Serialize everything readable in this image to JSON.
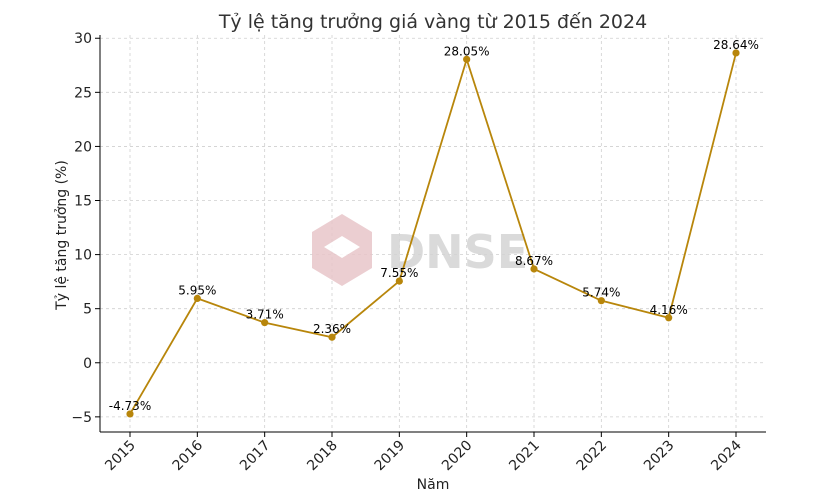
{
  "chart_data": {
    "type": "line",
    "title": "Tỷ lệ tăng trưởng giá vàng từ 2015 đến 2024",
    "xlabel": "Năm",
    "ylabel": "Tỷ lệ tăng trưởng (%)",
    "x": [
      "2015",
      "2016",
      "2017",
      "2018",
      "2019",
      "2020",
      "2021",
      "2022",
      "2023",
      "2024"
    ],
    "series": [
      {
        "values": [
          -4.73,
          5.95,
          3.71,
          2.36,
          7.55,
          28.05,
          8.67,
          5.74,
          4.16,
          28.64
        ],
        "labels": [
          "-4.73%",
          "5.95%",
          "3.71%",
          "2.36%",
          "7.55%",
          "28.05%",
          "8.67%",
          "5.74%",
          "4.16%",
          "28.64%"
        ],
        "color": "#b8860b"
      }
    ],
    "ylim": [
      -6.4,
      30.3
    ],
    "yticks": [
      -5,
      0,
      5,
      10,
      15,
      20,
      25,
      30
    ],
    "grid": true,
    "legend": "none"
  },
  "watermark": {
    "text": "DNSE",
    "logo_color": "#e8c6c9"
  }
}
